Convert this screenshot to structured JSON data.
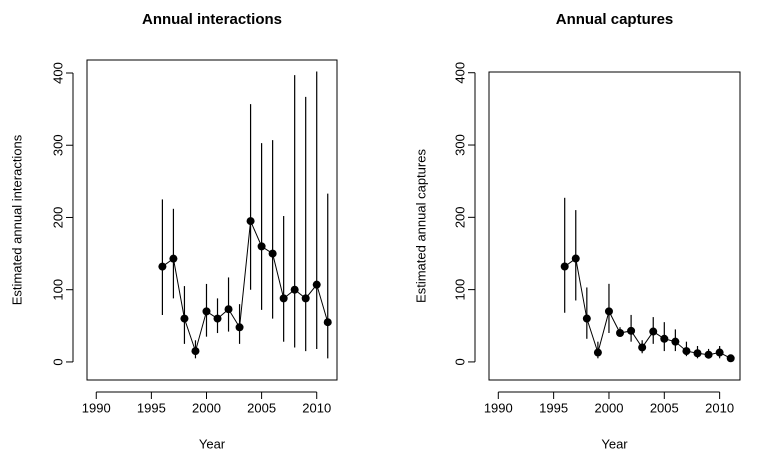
{
  "chart_data": [
    {
      "type": "line",
      "title": "Annual interactions",
      "x_label": "Year",
      "y_label": "Estimated annual interactions",
      "x": [
        1996,
        1997,
        1998,
        1999,
        2000,
        2001,
        2002,
        2003,
        2004,
        2005,
        2006,
        2007,
        2008,
        2009,
        2010,
        2011
      ],
      "series": [
        {
          "color": "#000000",
          "values": [
            132,
            143,
            60,
            15,
            70,
            60,
            73,
            48,
            195,
            160,
            150,
            88,
            100,
            88,
            107,
            55
          ],
          "lower": [
            65,
            88,
            25,
            5,
            35,
            40,
            42,
            25,
            100,
            72,
            60,
            28,
            20,
            15,
            18,
            5
          ],
          "upper": [
            225,
            212,
            105,
            30,
            108,
            88,
            117,
            80,
            357,
            303,
            307,
            202,
            397,
            367,
            402,
            233
          ]
        }
      ],
      "xlim": [
        1989.16,
        2011.84
      ],
      "xticks": [
        1990,
        1995,
        2000,
        2005,
        2010
      ],
      "ylim": [
        -25,
        418
      ],
      "yticks": [
        0,
        100,
        200,
        300,
        400
      ]
    },
    {
      "type": "line",
      "title": "Annual captures",
      "x_label": "Year",
      "y_label": "Estimated annual captures",
      "x": [
        1996,
        1997,
        1998,
        1999,
        2000,
        2001,
        2002,
        2003,
        2004,
        2005,
        2006,
        2007,
        2008,
        2009,
        2010,
        2011
      ],
      "series": [
        {
          "color": "#000000",
          "values": [
            132,
            143,
            60,
            13,
            70,
            40,
            43,
            20,
            42,
            32,
            28,
            15,
            12,
            10,
            13,
            5
          ],
          "lower": [
            68,
            85,
            32,
            5,
            40,
            35,
            28,
            12,
            25,
            15,
            15,
            8,
            5,
            5,
            5,
            2
          ],
          "upper": [
            227,
            210,
            103,
            28,
            108,
            48,
            65,
            30,
            62,
            55,
            45,
            28,
            22,
            18,
            22,
            10
          ]
        }
      ],
      "xlim": [
        1989.16,
        2011.84
      ],
      "xticks": [
        1990,
        1995,
        2000,
        2005,
        2010
      ],
      "ylim": [
        -25,
        401
      ],
      "yticks": [
        0,
        100,
        200,
        300,
        400
      ]
    }
  ]
}
